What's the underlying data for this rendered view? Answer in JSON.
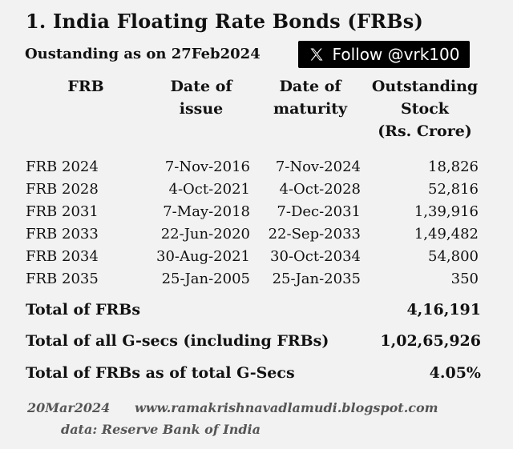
{
  "title": "1. India Floating Rate Bonds (FRBs)",
  "subtitle": "Oustanding as on 27Feb2024",
  "follow_badge": {
    "icon": "x-logo-icon",
    "label": "Follow @vrk100"
  },
  "table": {
    "headers": {
      "frb": "FRB",
      "issue_line1": "Date of",
      "issue_line2": "issue",
      "maturity_line1": "Date of",
      "maturity_line2": "maturity",
      "stock_line1": "Outstanding",
      "stock_line2": "Stock",
      "stock_line3": "(Rs. Crore)"
    },
    "rows": [
      {
        "name": "FRB 2024",
        "issue": "7-Nov-2016",
        "maturity": "7-Nov-2024",
        "stock": "18,826"
      },
      {
        "name": "FRB 2028",
        "issue": "4-Oct-2021",
        "maturity": "4-Oct-2028",
        "stock": "52,816"
      },
      {
        "name": "FRB 2031",
        "issue": "7-May-2018",
        "maturity": "7-Dec-2031",
        "stock": "1,39,916"
      },
      {
        "name": "FRB 2033",
        "issue": "22-Jun-2020",
        "maturity": "22-Sep-2033",
        "stock": "1,49,482"
      },
      {
        "name": "FRB 2034",
        "issue": "30-Aug-2021",
        "maturity": "30-Oct-2034",
        "stock": "54,800"
      },
      {
        "name": "FRB 2035",
        "issue": "25-Jan-2005",
        "maturity": "25-Jan-2035",
        "stock": "350"
      }
    ]
  },
  "totals": [
    {
      "label": "Total of FRBs",
      "value": "4,16,191"
    },
    {
      "label": "Total of all G-secs (including FRBs)",
      "value": "1,02,65,926"
    },
    {
      "label": "Total of FRBs as of total G-Secs",
      "value": "4.05%"
    }
  ],
  "footer": {
    "date": "20Mar2024",
    "url": "www.ramakrishnavadlamudi.blogspot.com",
    "source": "data: Reserve Bank of India"
  }
}
